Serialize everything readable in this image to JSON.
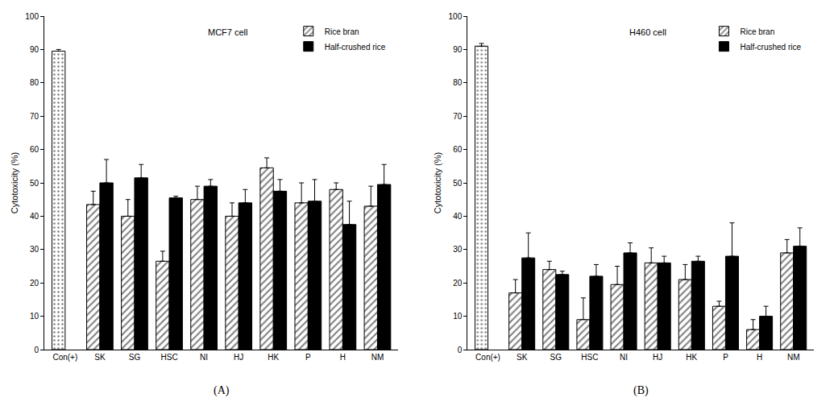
{
  "chart_data": [
    {
      "type": "bar",
      "title": "MCF7 cell",
      "y_label": "Cytotoxicity (%)",
      "annotations": [
        "(A)"
      ],
      "categories": [
        "Con(+)",
        "SK",
        "SG",
        "HSC",
        "NI",
        "HJ",
        "HK",
        "P",
        "H",
        "NM"
      ],
      "series": [
        {
          "marker": "dots",
          "color": "#000000",
          "values": [
            89.5,
            null,
            null,
            null,
            null,
            null,
            null,
            null,
            null,
            null
          ],
          "errors": [
            0.5,
            null,
            null,
            null,
            null,
            null,
            null,
            null,
            null,
            null
          ]
        },
        {
          "name": "Rice bran",
          "marker": "hatch",
          "color": "#000000",
          "values": [
            null,
            43.5,
            40,
            26.5,
            45,
            40,
            54.5,
            44,
            48,
            43
          ],
          "errors": [
            null,
            4,
            5,
            3,
            4,
            4,
            3,
            6,
            2,
            6
          ]
        },
        {
          "name": "Half-crushed rice",
          "marker": "solid",
          "color": "#000000",
          "values": [
            null,
            50,
            51.5,
            45.5,
            49,
            44,
            47.5,
            44.5,
            37.5,
            49.5
          ],
          "errors": [
            null,
            7,
            4,
            0.5,
            2,
            4,
            3.5,
            6.5,
            7,
            6
          ]
        }
      ],
      "ylim": [
        0,
        100
      ],
      "yticks": [
        0,
        10,
        20,
        30,
        40,
        50,
        60,
        70,
        80,
        90,
        100
      ],
      "grid": false,
      "legend": "top right"
    },
    {
      "type": "bar",
      "title": "H460 cell",
      "y_label": "Cytotoxicity (%)",
      "annotations": [
        "(B)"
      ],
      "categories": [
        "Con(+)",
        "SK",
        "SG",
        "HSC",
        "NI",
        "HJ",
        "HK",
        "P",
        "H",
        "NM"
      ],
      "series": [
        {
          "marker": "dots",
          "color": "#000000",
          "values": [
            91,
            null,
            null,
            null,
            null,
            null,
            null,
            null,
            null,
            null
          ],
          "errors": [
            0.8,
            null,
            null,
            null,
            null,
            null,
            null,
            null,
            null,
            null
          ]
        },
        {
          "name": "Rice bran",
          "marker": "hatch",
          "color": "#000000",
          "values": [
            null,
            17,
            24,
            9,
            19.5,
            26,
            21,
            13,
            6,
            29
          ],
          "errors": [
            null,
            4,
            2.5,
            6.5,
            5.5,
            4.5,
            4.5,
            1.5,
            3,
            4
          ]
        },
        {
          "name": "Half-crushed rice",
          "marker": "solid",
          "color": "#000000",
          "values": [
            null,
            27.5,
            22.5,
            22,
            29,
            26,
            26.5,
            28,
            10,
            31
          ],
          "errors": [
            null,
            7.5,
            1,
            3.5,
            3,
            2,
            1.5,
            10,
            3,
            5.5
          ]
        }
      ],
      "ylim": [
        0,
        100
      ],
      "yticks": [
        0,
        10,
        20,
        30,
        40,
        50,
        60,
        70,
        80,
        90,
        100
      ],
      "grid": false,
      "legend": "top right"
    }
  ]
}
